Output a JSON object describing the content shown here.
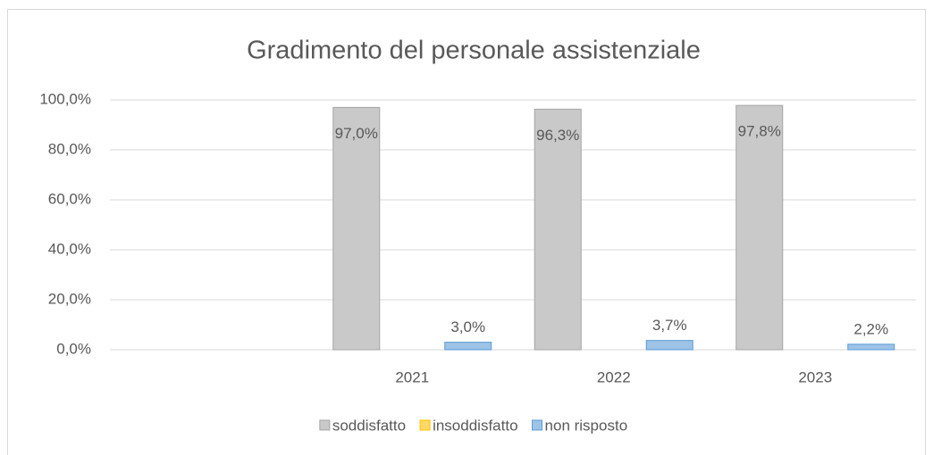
{
  "chart_data": {
    "type": "bar",
    "title": "Gradimento del personale assistenziale",
    "categories": [
      null,
      "2021",
      "2022",
      "2023"
    ],
    "series": [
      {
        "name": "soddisfatto",
        "color": "#c9c9c9",
        "stroke": "#a5a5a5",
        "values": [
          null,
          97.0,
          96.3,
          97.8
        ],
        "value_labels": [
          null,
          "97,0%",
          "96,3%",
          "97,8%"
        ]
      },
      {
        "name": "insoddisfatto",
        "color": "#ffd966",
        "stroke": "#ffc000",
        "values": [
          null,
          null,
          null,
          null
        ]
      },
      {
        "name": "non risposto",
        "color": "#9dc3e6",
        "stroke": "#5b9bd5",
        "values": [
          null,
          3.0,
          3.7,
          2.2
        ],
        "value_labels": [
          null,
          "3,0%",
          "3,7%",
          "2,2%"
        ]
      }
    ],
    "ylim": [
      0,
      100
    ],
    "yticks": [
      {
        "value": 0,
        "label": "0,0%"
      },
      {
        "value": 20,
        "label": "20,0%"
      },
      {
        "value": 40,
        "label": "40,0%"
      },
      {
        "value": 60,
        "label": "60,0%"
      },
      {
        "value": 80,
        "label": "80,0%"
      },
      {
        "value": 100,
        "label": "100,0%"
      }
    ],
    "grid": true,
    "legend": "bottom"
  }
}
